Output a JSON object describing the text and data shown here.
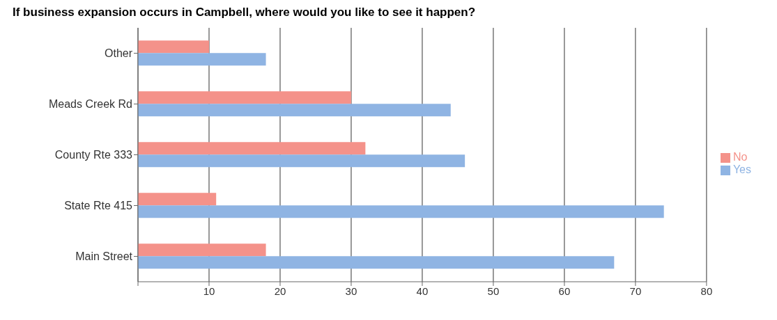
{
  "chart_data": {
    "type": "bar",
    "orientation": "horizontal",
    "title": "If business expansion occurs in Campbell, where would you like to see it happen?",
    "categories": [
      "Other",
      "Meads Creek Rd",
      "County Rte 333",
      "State Rte 415",
      "Main Street"
    ],
    "series": [
      {
        "name": "No",
        "color": "#f4928a",
        "values": [
          10,
          30,
          32,
          11,
          18
        ]
      },
      {
        "name": "Yes",
        "color": "#8fb4e3",
        "values": [
          18,
          44,
          46,
          74,
          67
        ]
      }
    ],
    "xlim": [
      0,
      80
    ],
    "xticks": [
      {
        "value": 0,
        "label": null
      },
      10,
      20,
      30,
      40,
      50,
      60,
      70,
      80
    ],
    "grid": "x",
    "legend": "right"
  }
}
